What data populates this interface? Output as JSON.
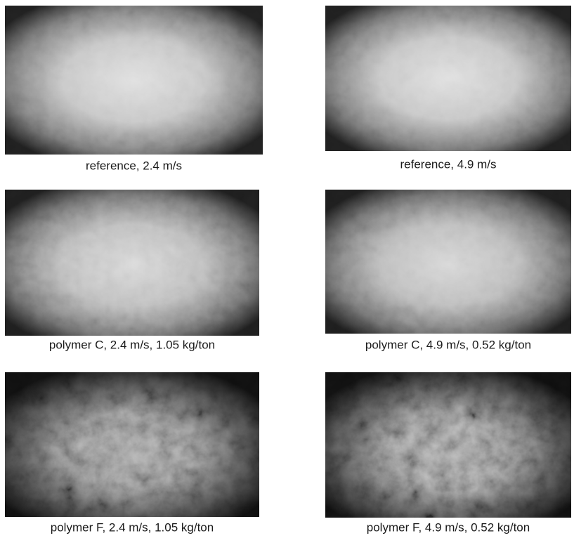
{
  "figure": {
    "panels": [
      {
        "caption": "reference, 2.4 m/s"
      },
      {
        "caption": "reference, 4.9 m/s"
      },
      {
        "caption": "polymer C, 2.4 m/s, 1.05 kg/ton"
      },
      {
        "caption": "polymer C, 4.9 m/s, 0.52 kg/ton"
      },
      {
        "caption": "polymer F, 2.4 m/s, 1.05 kg/ton"
      },
      {
        "caption": "polymer F, 4.9 m/s, 0.52 kg/ton"
      }
    ]
  }
}
